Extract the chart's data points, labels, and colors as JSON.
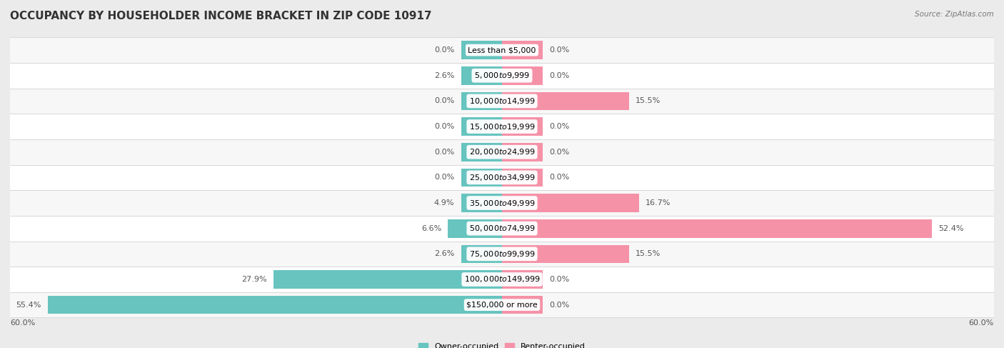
{
  "title": "OCCUPANCY BY HOUSEHOLDER INCOME BRACKET IN ZIP CODE 10917",
  "source": "Source: ZipAtlas.com",
  "categories": [
    "Less than $5,000",
    "$5,000 to $9,999",
    "$10,000 to $14,999",
    "$15,000 to $19,999",
    "$20,000 to $24,999",
    "$25,000 to $34,999",
    "$35,000 to $49,999",
    "$50,000 to $74,999",
    "$75,000 to $99,999",
    "$100,000 to $149,999",
    "$150,000 or more"
  ],
  "owner_values": [
    0.0,
    2.6,
    0.0,
    0.0,
    0.0,
    0.0,
    4.9,
    6.6,
    2.6,
    27.9,
    55.4
  ],
  "renter_values": [
    0.0,
    0.0,
    15.5,
    0.0,
    0.0,
    0.0,
    16.7,
    52.4,
    15.5,
    0.0,
    0.0
  ],
  "owner_color": "#67c4bf",
  "renter_color": "#f592a8",
  "owner_label": "Owner-occupied",
  "renter_label": "Renter-occupied",
  "axis_max": 60.0,
  "background_color": "#ebebeb",
  "row_bg_even": "#f7f7f7",
  "row_bg_odd": "#ffffff",
  "title_fontsize": 11,
  "label_fontsize": 8,
  "tick_fontsize": 8,
  "source_fontsize": 7.5,
  "min_stub": 5.0
}
